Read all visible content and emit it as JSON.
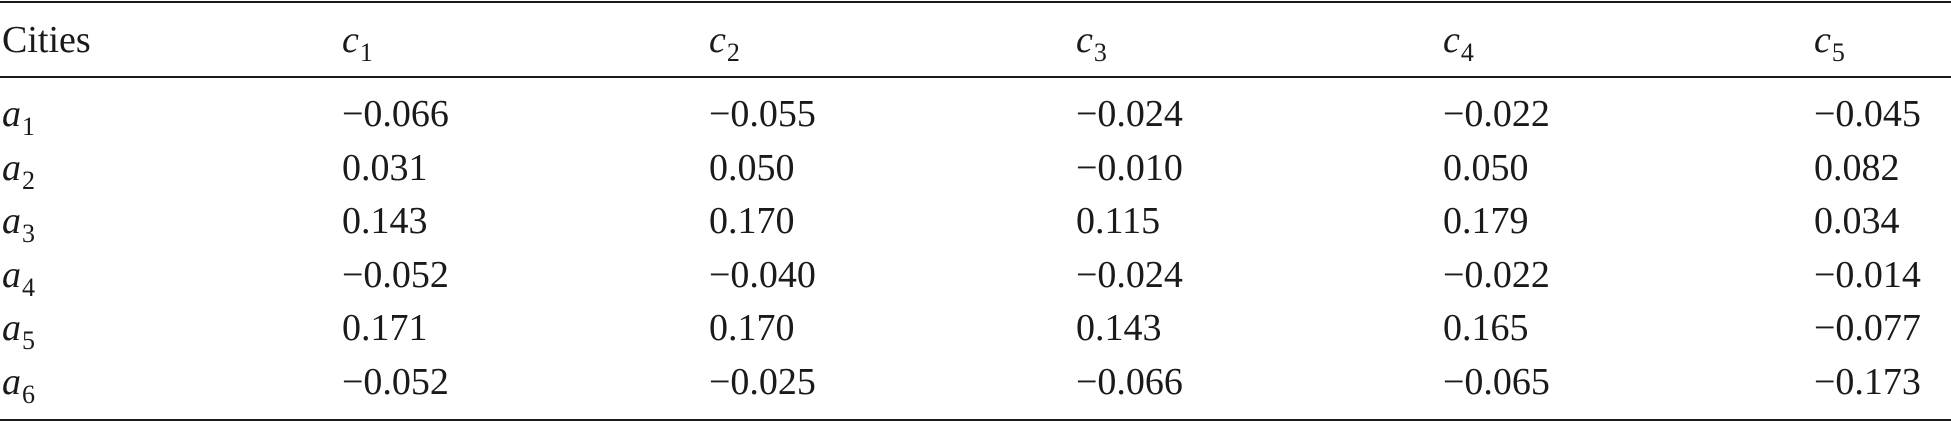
{
  "table": {
    "header": [
      "Cities",
      {
        "base": "c",
        "sub": "1"
      },
      {
        "base": "c",
        "sub": "2"
      },
      {
        "base": "c",
        "sub": "3"
      },
      {
        "base": "c",
        "sub": "4"
      },
      {
        "base": "c",
        "sub": "5"
      }
    ],
    "rows": [
      [
        {
          "base": "a",
          "sub": "1"
        },
        "−0.066",
        "−0.055",
        "−0.024",
        "−0.022",
        "−0.045"
      ],
      [
        {
          "base": "a",
          "sub": "2"
        },
        "0.031",
        "0.050",
        "−0.010",
        "0.050",
        "0.082"
      ],
      [
        {
          "base": "a",
          "sub": "3"
        },
        "0.143",
        "0.170",
        "0.115",
        "0.179",
        "0.034"
      ],
      [
        {
          "base": "a",
          "sub": "4"
        },
        "−0.052",
        "−0.040",
        "−0.024",
        "−0.022",
        "−0.014"
      ],
      [
        {
          "base": "a",
          "sub": "5"
        },
        "0.171",
        "0.170",
        "0.143",
        "0.165",
        "−0.077"
      ],
      [
        {
          "base": "a",
          "sub": "6"
        },
        "−0.052",
        "−0.025",
        "−0.066",
        "−0.065",
        "−0.173"
      ]
    ]
  }
}
